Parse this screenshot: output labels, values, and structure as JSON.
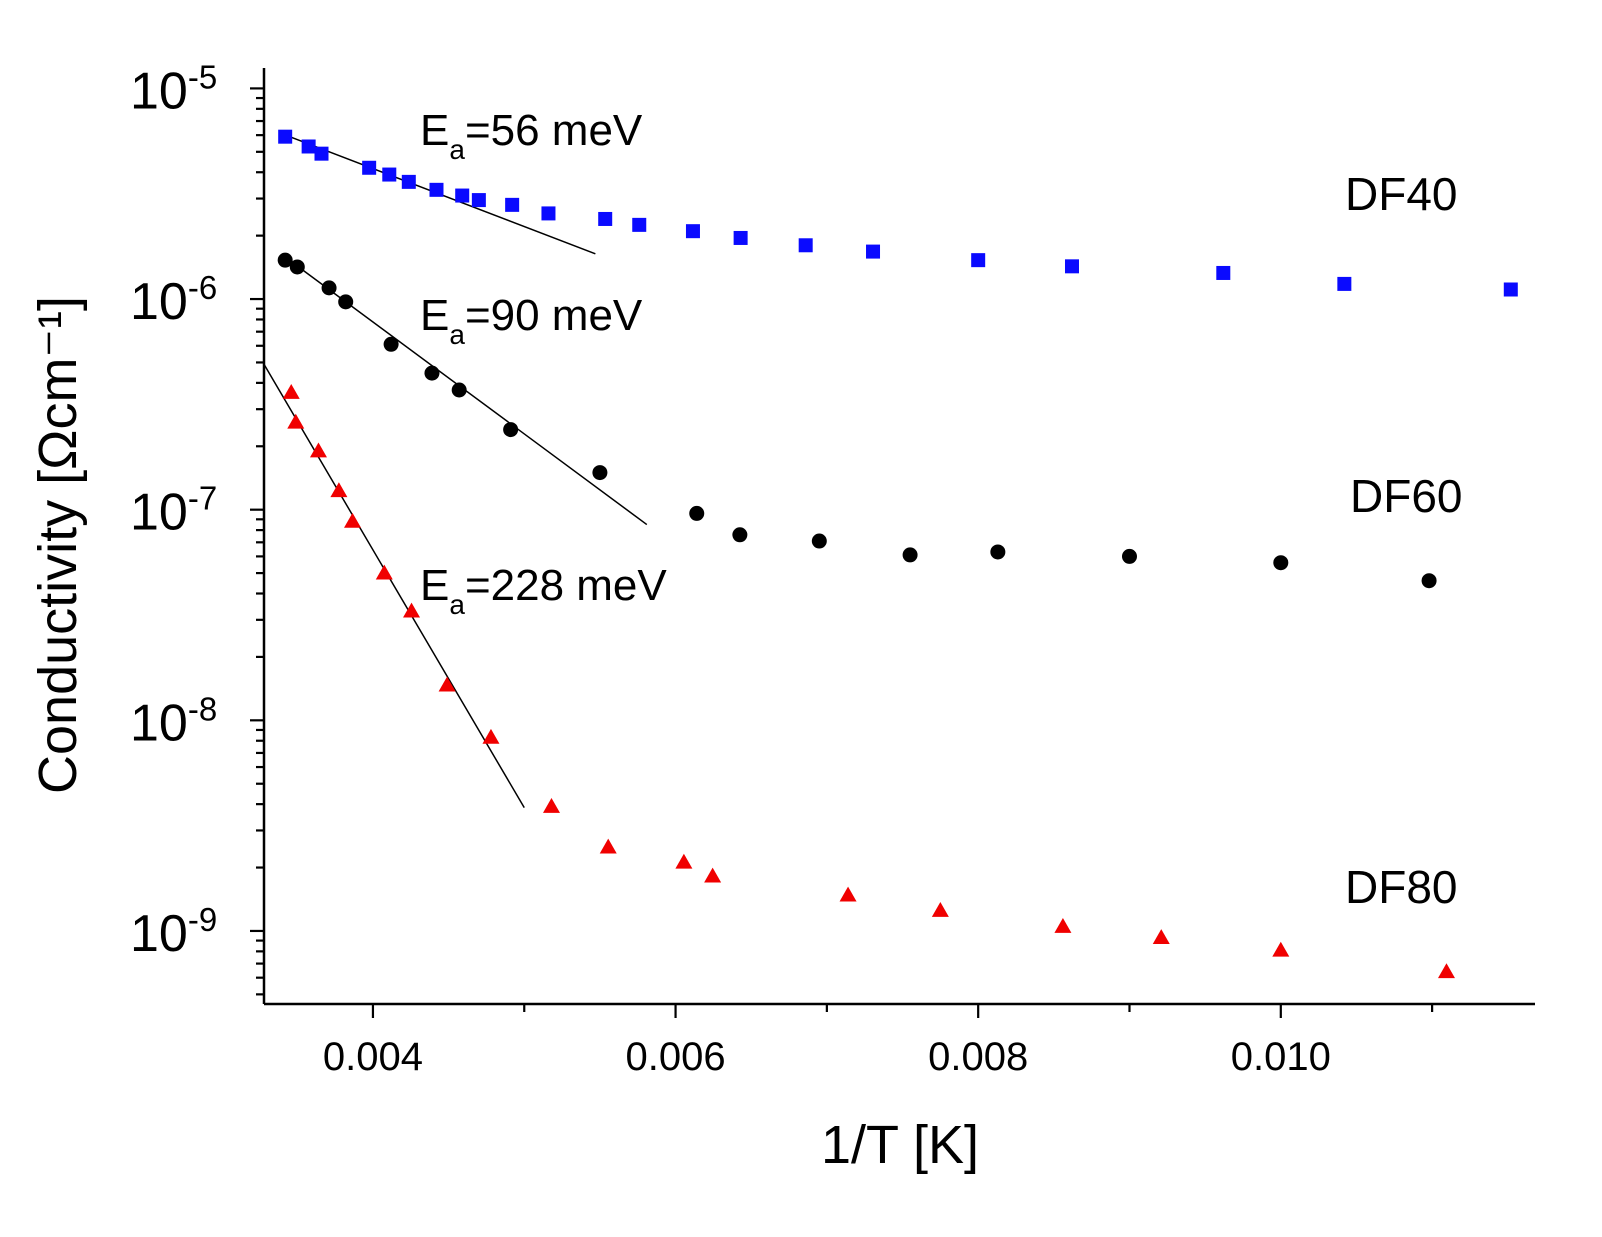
{
  "chart_data": {
    "type": "scatter",
    "title": "",
    "xlabel": "1/T [K]",
    "ylabel": "Conductivity [Ωcm⁻¹]",
    "yscale": "log",
    "xlim": [
      0.00328,
      0.01168
    ],
    "ylim": [
      4.5e-10,
      1.25e-05
    ],
    "x_ticks": [
      0.004,
      0.006,
      0.008,
      0.01
    ],
    "x_tick_labels": [
      "0.004",
      "0.006",
      "0.008",
      "0.010"
    ],
    "x_minor_ticks": [
      0.005,
      0.007,
      0.009,
      0.011
    ],
    "y_decades": [
      {
        "value": 1e-05,
        "base": "10",
        "exp": "-5"
      },
      {
        "value": 1e-06,
        "base": "10",
        "exp": "-6"
      },
      {
        "value": 1e-07,
        "base": "10",
        "exp": "-7"
      },
      {
        "value": 1e-08,
        "base": "10",
        "exp": "-8"
      },
      {
        "value": 1e-09,
        "base": "10",
        "exp": "-9"
      }
    ],
    "series": [
      {
        "name": "DF40",
        "marker": "square",
        "color": "#0a0aff",
        "x": [
          0.00342,
          0.003575,
          0.00366,
          0.003975,
          0.004108,
          0.004237,
          0.00442,
          0.00459,
          0.0047,
          0.00492,
          0.00516,
          0.005535,
          0.00576,
          0.006115,
          0.00643,
          0.00686,
          0.007305,
          0.008,
          0.00862,
          0.00962,
          0.01042,
          0.01152
        ],
        "y": [
          5.9e-06,
          5.3e-06,
          4.9e-06,
          4.2e-06,
          3.9e-06,
          3.6e-06,
          3.3e-06,
          3.1e-06,
          2.95e-06,
          2.8e-06,
          2.55e-06,
          2.4e-06,
          2.25e-06,
          2.1e-06,
          1.95e-06,
          1.8e-06,
          1.68e-06,
          1.53e-06,
          1.43e-06,
          1.33e-06,
          1.18e-06,
          1.11e-06
        ]
      },
      {
        "name": "DF60",
        "marker": "circle",
        "color": "#000000",
        "x": [
          0.00342,
          0.0035,
          0.00371,
          0.00382,
          0.00412,
          0.00439,
          0.00457,
          0.00491,
          0.0055,
          0.00614,
          0.006425,
          0.00695,
          0.00755,
          0.00813,
          0.009,
          0.01,
          0.01098
        ],
        "y": [
          1.53e-06,
          1.42e-06,
          1.13e-06,
          9.7e-07,
          6.1e-07,
          4.45e-07,
          3.7e-07,
          2.4e-07,
          1.5e-07,
          9.6e-08,
          7.6e-08,
          7.1e-08,
          6.1e-08,
          6.3e-08,
          6e-08,
          5.6e-08,
          4.6e-08
        ]
      },
      {
        "name": "DF80",
        "marker": "triangle",
        "color": "#f00000",
        "x": [
          0.00346,
          0.00349,
          0.00364,
          0.003775,
          0.003865,
          0.004075,
          0.004255,
          0.00449,
          0.00478,
          0.00518,
          0.005555,
          0.006055,
          0.006245,
          0.00714,
          0.00775,
          0.00856,
          0.00921,
          0.01,
          0.011095
        ],
        "y": [
          3.6e-07,
          2.6e-07,
          1.9e-07,
          1.23e-07,
          8.8e-08,
          5e-08,
          3.3e-08,
          1.47e-08,
          8.3e-09,
          3.9e-09,
          2.5e-09,
          2.12e-09,
          1.82e-09,
          1.48e-09,
          1.25e-09,
          1.05e-09,
          9.3e-10,
          8.1e-10,
          6.4e-10
        ]
      }
    ],
    "fit_lines": [
      {
        "series": "DF40",
        "x": [
          0.00345,
          0.00547
        ],
        "y": [
          5.9e-06,
          1.64e-06
        ]
      },
      {
        "series": "DF60",
        "x": [
          0.00352,
          0.00581
        ],
        "y": [
          1.4e-06,
          8.5e-08
        ]
      },
      {
        "series": "DF80",
        "x": [
          0.00328,
          0.005
        ],
        "y": [
          4.9e-07,
          3.85e-09
        ]
      }
    ],
    "annotations": [
      {
        "base": "E",
        "sub": "a",
        "text": "=56 meV",
        "series": "DF40"
      },
      {
        "base": "E",
        "sub": "a",
        "text": "=90 meV",
        "series": "DF60"
      },
      {
        "base": "E",
        "sub": "a",
        "text": "=228 meV",
        "series": "DF80"
      }
    ],
    "series_labels": [
      "DF40",
      "DF60",
      "DF80"
    ]
  }
}
